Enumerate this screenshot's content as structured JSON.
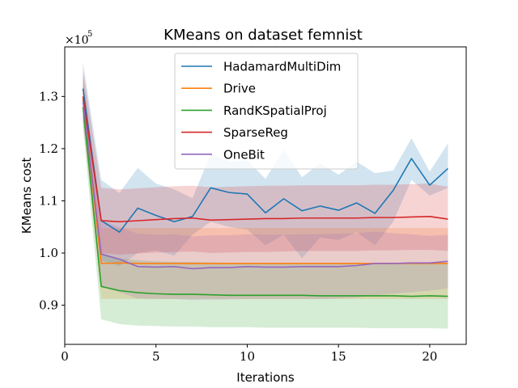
{
  "chart_data": {
    "type": "line",
    "title": "KMeans on dataset femnist",
    "xlabel": "Iterations",
    "ylabel": "KMeans cost",
    "y_multiplier_base": "×10",
    "y_multiplier_exp": "5",
    "xlim": [
      0,
      22
    ],
    "ylim": [
      0.825,
      1.395
    ],
    "xticks": [
      0,
      5,
      10,
      15,
      20
    ],
    "xtick_labels": [
      "0",
      "5",
      "10",
      "15",
      "20"
    ],
    "yticks": [
      0.9,
      1.0,
      1.1,
      1.2,
      1.3
    ],
    "ytick_labels": [
      "0.9",
      "1.0",
      "1.1",
      "1.2",
      "1.3"
    ],
    "legend_position": "upper-center",
    "x": [
      1,
      2,
      3,
      4,
      5,
      6,
      7,
      8,
      9,
      10,
      11,
      12,
      13,
      14,
      15,
      16,
      17,
      18,
      19,
      20,
      21
    ],
    "series": [
      {
        "name": "HadamardMultiDim",
        "color": "#1f77b4",
        "values": [
          1.315,
          1.062,
          1.04,
          1.086,
          1.072,
          1.06,
          1.07,
          1.125,
          1.116,
          1.113,
          1.077,
          1.104,
          1.081,
          1.09,
          1.082,
          1.096,
          1.076,
          1.12,
          1.181,
          1.13,
          1.162
        ],
        "lower": [
          1.26,
          0.985,
          0.975,
          1.0,
          1.005,
          0.995,
          1.035,
          1.06,
          1.05,
          1.045,
          1.015,
          1.035,
          0.99,
          1.03,
          1.025,
          1.04,
          1.015,
          1.06,
          1.14,
          1.11,
          1.125
        ],
        "upper": [
          1.365,
          1.14,
          1.115,
          1.163,
          1.133,
          1.122,
          1.105,
          1.19,
          1.175,
          1.178,
          1.142,
          1.198,
          1.145,
          1.172,
          1.15,
          1.175,
          1.153,
          1.158,
          1.22,
          1.156,
          1.21
        ]
      },
      {
        "name": "Drive",
        "color": "#ff7f0e",
        "values": [
          1.295,
          0.98,
          0.981,
          0.98,
          0.98,
          0.98,
          0.98,
          0.98,
          0.98,
          0.98,
          0.98,
          0.98,
          0.98,
          0.98,
          0.98,
          0.98,
          0.98,
          0.98,
          0.98,
          0.98,
          0.98
        ],
        "lower": [
          1.255,
          0.912,
          0.912,
          0.912,
          0.912,
          0.912,
          0.912,
          0.912,
          0.912,
          0.912,
          0.912,
          0.912,
          0.912,
          0.912,
          0.912,
          0.912,
          0.912,
          0.912,
          0.912,
          0.912,
          0.912
        ],
        "upper": [
          1.34,
          1.048,
          1.048,
          1.048,
          1.048,
          1.048,
          1.048,
          1.048,
          1.048,
          1.048,
          1.048,
          1.048,
          1.048,
          1.048,
          1.048,
          1.048,
          1.048,
          1.048,
          1.048,
          1.048,
          1.048
        ]
      },
      {
        "name": "RandKSpatialProj",
        "color": "#2ca02c",
        "values": [
          1.28,
          0.936,
          0.928,
          0.924,
          0.922,
          0.921,
          0.921,
          0.92,
          0.919,
          0.919,
          0.919,
          0.919,
          0.919,
          0.918,
          0.918,
          0.918,
          0.918,
          0.918,
          0.917,
          0.918,
          0.917
        ],
        "lower": [
          1.24,
          0.873,
          0.864,
          0.861,
          0.86,
          0.859,
          0.859,
          0.858,
          0.858,
          0.858,
          0.857,
          0.857,
          0.857,
          0.857,
          0.857,
          0.857,
          0.856,
          0.856,
          0.856,
          0.856,
          0.855
        ],
        "upper": [
          1.32,
          1.0,
          0.99,
          0.986,
          0.984,
          0.983,
          0.983,
          0.982,
          0.981,
          0.981,
          0.98,
          0.98,
          0.98,
          0.98,
          0.98,
          0.98,
          0.98,
          0.98,
          0.98,
          0.98,
          0.98
        ]
      },
      {
        "name": "SparseReg",
        "color": "#d62728",
        "values": [
          1.3,
          1.062,
          1.06,
          1.062,
          1.064,
          1.066,
          1.067,
          1.063,
          1.064,
          1.065,
          1.066,
          1.066,
          1.067,
          1.067,
          1.067,
          1.067,
          1.068,
          1.068,
          1.069,
          1.07,
          1.065
        ],
        "lower": [
          1.26,
          1.0,
          0.997,
          0.999,
          1.001,
          1.002,
          1.003,
          1.0,
          1.001,
          1.002,
          1.002,
          1.003,
          1.004,
          1.004,
          1.004,
          1.004,
          1.005,
          1.005,
          1.006,
          1.006,
          1.004
        ],
        "upper": [
          1.35,
          1.125,
          1.122,
          1.124,
          1.126,
          1.128,
          1.129,
          1.126,
          1.127,
          1.128,
          1.129,
          1.129,
          1.13,
          1.13,
          1.13,
          1.13,
          1.131,
          1.131,
          1.132,
          1.133,
          1.127
        ]
      },
      {
        "name": "OneBit",
        "color": "#9467bd",
        "values": [
          1.29,
          0.998,
          0.988,
          0.974,
          0.973,
          0.974,
          0.97,
          0.972,
          0.972,
          0.974,
          0.973,
          0.973,
          0.974,
          0.974,
          0.974,
          0.976,
          0.98,
          0.98,
          0.981,
          0.981,
          0.984
        ],
        "lower": [
          1.25,
          0.935,
          0.925,
          0.913,
          0.912,
          0.912,
          0.91,
          0.911,
          0.911,
          0.912,
          0.912,
          0.912,
          0.912,
          0.912,
          0.913,
          0.915,
          0.919,
          0.922,
          0.925,
          0.928,
          0.932
        ],
        "upper": [
          1.33,
          1.062,
          1.05,
          1.037,
          1.035,
          1.036,
          1.032,
          1.034,
          1.034,
          1.036,
          1.035,
          1.035,
          1.036,
          1.036,
          1.037,
          1.038,
          1.041,
          1.038,
          1.036,
          1.033,
          1.035
        ]
      }
    ]
  }
}
